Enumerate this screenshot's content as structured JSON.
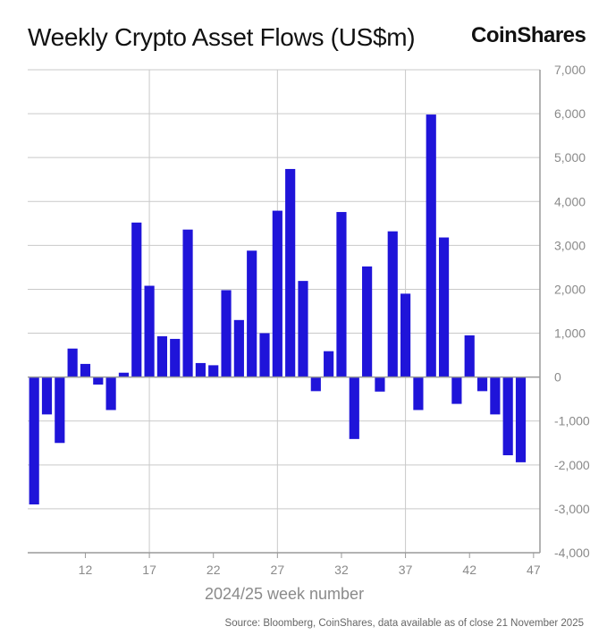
{
  "header": {
    "title": "Weekly Crypto Asset Flows (US$m)",
    "brand": "CoinShares"
  },
  "footer": {
    "source": "Source: Bloomberg, CoinShares, data available as of close 21 November 2025"
  },
  "colors": {
    "bar": "#1f14d9",
    "grid": "#c9c9c9",
    "axis": "#9a9a9a"
  },
  "chart_data": {
    "type": "bar",
    "title": "Weekly Crypto Asset Flows (US$m)",
    "xlabel": "2024/25 week number",
    "ylabel": "",
    "ylim": [
      -4000,
      7000
    ],
    "y_ticks": [
      7000,
      6000,
      5000,
      4000,
      3000,
      2000,
      1000,
      0,
      -1000,
      -2000,
      -3000,
      -4000
    ],
    "y_tick_labels": [
      "7,000",
      "6,000",
      "5,000",
      "4,000",
      "3,000",
      "2,000",
      "1,000",
      "0",
      "-1,000",
      "-2,000",
      "-3,000",
      "-4,000"
    ],
    "x_tick_labels": [
      "12",
      "17",
      "22",
      "27",
      "32",
      "37",
      "42",
      "47"
    ],
    "x_tick_weeks": [
      12,
      17,
      22,
      27,
      32,
      37,
      42,
      47
    ],
    "vertical_grid_weeks": [
      17,
      27,
      37
    ],
    "grid": true,
    "weeks": [
      8,
      9,
      10,
      11,
      12,
      13,
      14,
      15,
      16,
      17,
      18,
      19,
      20,
      21,
      22,
      23,
      24,
      25,
      26,
      27,
      28,
      29,
      30,
      31,
      32,
      33,
      34,
      35,
      36,
      37,
      38,
      39,
      40,
      41,
      42,
      43,
      44,
      45,
      46,
      47
    ],
    "values": [
      -2900,
      -850,
      -1500,
      650,
      300,
      -170,
      -750,
      100,
      3520,
      2080,
      930,
      870,
      3360,
      320,
      270,
      1980,
      1300,
      2880,
      1000,
      3790,
      4740,
      2190,
      -320,
      590,
      3760,
      -1410,
      2520,
      -330,
      3320,
      1900,
      -750,
      5980,
      3180,
      -610,
      950,
      -320,
      -850,
      -1780,
      -1940,
      0
    ]
  }
}
